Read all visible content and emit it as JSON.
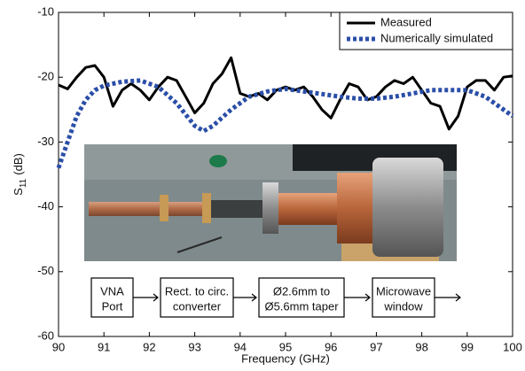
{
  "chart_data": {
    "type": "line",
    "xlabel": "Frequency (GHz)",
    "ylabel": {
      "symbol": "S",
      "subscript": "11",
      "unit": "(dB)"
    },
    "xlim": [
      90,
      100
    ],
    "xticks": [
      90,
      91,
      92,
      93,
      94,
      95,
      96,
      97,
      98,
      99,
      100
    ],
    "ylim": [
      -60,
      -10
    ],
    "yticks": [
      -60,
      -50,
      -40,
      -30,
      -20,
      -10
    ],
    "legend": "upper right",
    "series": [
      {
        "name": "Measured",
        "color": "#000000",
        "style": "solid",
        "x": [
          90.0,
          90.2,
          90.4,
          90.6,
          90.8,
          91.0,
          91.2,
          91.4,
          91.6,
          91.8,
          92.0,
          92.2,
          92.4,
          92.6,
          92.8,
          93.0,
          93.2,
          93.4,
          93.6,
          93.8,
          94.0,
          94.2,
          94.4,
          94.6,
          94.8,
          95.0,
          95.2,
          95.4,
          95.6,
          95.8,
          96.0,
          96.2,
          96.4,
          96.6,
          96.8,
          97.0,
          97.2,
          97.4,
          97.6,
          97.8,
          98.0,
          98.2,
          98.4,
          98.6,
          98.8,
          99.0,
          99.2,
          99.4,
          99.6,
          99.8,
          100.0
        ],
        "values": [
          -21.2,
          -21.8,
          -20,
          -18.5,
          -18.2,
          -20,
          -24.5,
          -22,
          -21,
          -22,
          -23.5,
          -21.5,
          -20,
          -20.5,
          -23,
          -25.5,
          -24,
          -21,
          -19.5,
          -17,
          -22.5,
          -23,
          -22.5,
          -23.5,
          -22,
          -21.5,
          -22,
          -21.5,
          -23,
          -25,
          -26.3,
          -23.5,
          -21,
          -21.5,
          -23.5,
          -23,
          -21.5,
          -20.5,
          -21,
          -20,
          -22,
          -24,
          -24.5,
          -28,
          -26,
          -21.5,
          -20.5,
          -20.5,
          -22,
          -20,
          -19.8
        ]
      },
      {
        "name": "Numerically simulated",
        "color": "#2b4fa8",
        "style": "dotted",
        "x": [
          90.0,
          90.2,
          90.4,
          90.6,
          90.8,
          91.0,
          91.4,
          91.8,
          92.2,
          92.6,
          93.0,
          93.2,
          93.4,
          93.8,
          94.2,
          94.6,
          95.0,
          95.4,
          95.8,
          96.2,
          96.6,
          97.0,
          97.4,
          97.8,
          98.2,
          98.6,
          99.0,
          99.4,
          99.8,
          100.0
        ],
        "values": [
          -34,
          -30,
          -26,
          -23.5,
          -22,
          -21.3,
          -20.7,
          -20.5,
          -21.5,
          -24,
          -27.5,
          -28.3,
          -27.5,
          -25,
          -23,
          -22.2,
          -21.8,
          -22.2,
          -22.6,
          -23,
          -23.3,
          -23.3,
          -23,
          -22.5,
          -22,
          -22,
          -22,
          -23,
          -25,
          -26
        ]
      }
    ],
    "diagram_blocks": [
      [
        "VNA",
        "Port"
      ],
      [
        "Rect. to circ.",
        "converter"
      ],
      [
        "Ø2.6mm to",
        "Ø5.6mm taper"
      ],
      [
        "Microwave",
        "window"
      ]
    ]
  }
}
